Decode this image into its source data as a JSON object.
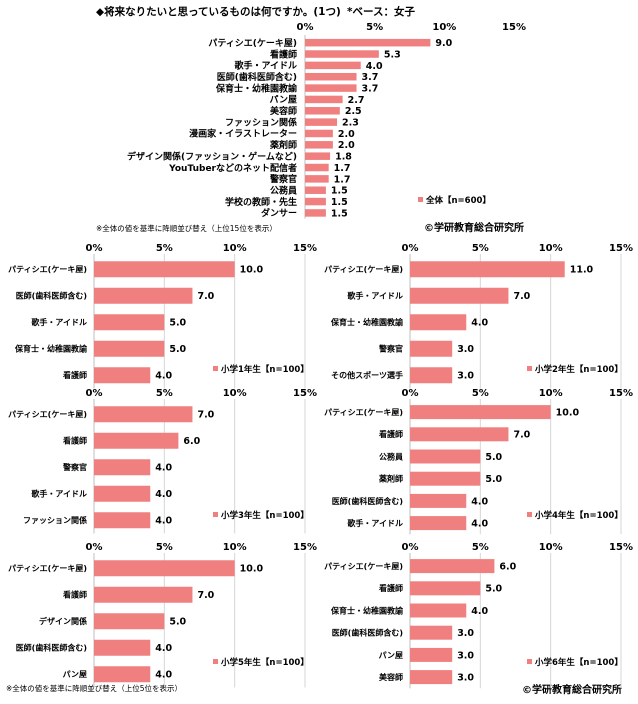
{
  "header": {
    "title": "◆将来なりたいと思っているものは何ですか。(1つ)",
    "base": "*ベース：女子"
  },
  "notes": {
    "top": "※全体の値を基準に降順並び替え（上位15位を表示）",
    "bottom": "※全体の値を基準に降順並び替え（上位5位を表示）"
  },
  "copyright": "©学研教育総合研究所",
  "bar_color": "#f08080",
  "chart_data": [
    {
      "type": "bar",
      "orientation": "horizontal",
      "legend": "全体【n=600】",
      "x_ticks": [
        "0%",
        "5%",
        "10%",
        "15%"
      ],
      "xlim": [
        0,
        15
      ],
      "grid": false,
      "categories": [
        "パティシエ(ケーキ屋)",
        "看護師",
        "歌手・アイドル",
        "医師(歯科医師含む)",
        "保育士・幼稚園教諭",
        "パン屋",
        "美容師",
        "ファッション関係",
        "漫画家・イラストレーター",
        "薬剤師",
        "デザイン関係(ファッション・ゲームなど)",
        "YouTuberなどのネット配信者",
        "警察官",
        "公務員",
        "学校の教師・先生",
        "ダンサー"
      ],
      "values": [
        9.0,
        5.3,
        4.0,
        3.7,
        3.7,
        2.7,
        2.5,
        2.3,
        2.0,
        2.0,
        1.8,
        1.7,
        1.7,
        1.5,
        1.5,
        1.5
      ],
      "value_labels": [
        "9.0",
        "5.3",
        "4.0",
        "3.7",
        "3.7",
        "2.7",
        "2.5",
        "2.3",
        "2.0",
        "2.0",
        "1.8",
        "1.7",
        "1.7",
        "1.5",
        "1.5",
        "1.5"
      ]
    },
    {
      "type": "bar",
      "orientation": "horizontal",
      "legend": "小学1年生【n=100】",
      "x_ticks": [
        "0%",
        "5%",
        "10%",
        "15%"
      ],
      "xlim": [
        0,
        15
      ],
      "grid": true,
      "categories": [
        "パティシエ(ケーキ屋)",
        "医師(歯科医師含む)",
        "歌手・アイドル",
        "保育士・幼稚園教諭",
        "看護師"
      ],
      "values": [
        10.0,
        7.0,
        5.0,
        5.0,
        4.0
      ],
      "value_labels": [
        "10.0",
        "7.0",
        "5.0",
        "5.0",
        "4.0"
      ]
    },
    {
      "type": "bar",
      "orientation": "horizontal",
      "legend": "小学2年生【n=100】",
      "x_ticks": [
        "0%",
        "5%",
        "10%",
        "15%"
      ],
      "xlim": [
        0,
        15
      ],
      "grid": true,
      "categories": [
        "パティシエ(ケーキ屋)",
        "歌手・アイドル",
        "保育士・幼稚園教諭",
        "警察官",
        "その他スポーツ選手"
      ],
      "values": [
        11.0,
        7.0,
        4.0,
        3.0,
        3.0
      ],
      "value_labels": [
        "11.0",
        "7.0",
        "4.0",
        "3.0",
        "3.0"
      ]
    },
    {
      "type": "bar",
      "orientation": "horizontal",
      "legend": "小学3年生【n=100】",
      "x_ticks": [
        "0%",
        "5%",
        "10%",
        "15%"
      ],
      "xlim": [
        0,
        15
      ],
      "grid": true,
      "categories": [
        "パティシエ(ケーキ屋)",
        "看護師",
        "警察官",
        "歌手・アイドル",
        "ファッション関係"
      ],
      "values": [
        7.0,
        6.0,
        4.0,
        4.0,
        4.0
      ],
      "value_labels": [
        "7.0",
        "6.0",
        "4.0",
        "4.0",
        "4.0"
      ]
    },
    {
      "type": "bar",
      "orientation": "horizontal",
      "legend": "小学4年生【n=100】",
      "x_ticks": [
        "0%",
        "5%",
        "10%",
        "15%"
      ],
      "xlim": [
        0,
        15
      ],
      "grid": true,
      "categories": [
        "パティシエ(ケーキ屋)",
        "看護師",
        "公務員",
        "薬剤師",
        "医師(歯科医師含む)",
        "歌手・アイドル"
      ],
      "values": [
        10.0,
        7.0,
        5.0,
        5.0,
        4.0,
        4.0
      ],
      "value_labels": [
        "10.0",
        "7.0",
        "5.0",
        "5.0",
        "4.0",
        "4.0"
      ]
    },
    {
      "type": "bar",
      "orientation": "horizontal",
      "legend": "小学5年生【n=100】",
      "x_ticks": [
        "0%",
        "5%",
        "10%",
        "15%"
      ],
      "xlim": [
        0,
        15
      ],
      "grid": true,
      "categories": [
        "パティシエ(ケーキ屋)",
        "看護師",
        "デザイン関係",
        "医師(歯科医師含む)",
        "パン屋"
      ],
      "values": [
        10.0,
        7.0,
        5.0,
        4.0,
        4.0
      ],
      "value_labels": [
        "10.0",
        "7.0",
        "5.0",
        "4.0",
        "4.0"
      ]
    },
    {
      "type": "bar",
      "orientation": "horizontal",
      "legend": "小学6年生【n=100】",
      "x_ticks": [
        "0%",
        "5%",
        "10%",
        "15%"
      ],
      "xlim": [
        0,
        15
      ],
      "grid": true,
      "categories": [
        "パティシエ(ケーキ屋)",
        "看護師",
        "保育士・幼稚園教諭",
        "医師(歯科医師含む)",
        "パン屋",
        "美容師"
      ],
      "values": [
        6.0,
        5.0,
        4.0,
        3.0,
        3.0,
        3.0
      ],
      "value_labels": [
        "6.0",
        "5.0",
        "4.0",
        "3.0",
        "3.0",
        "3.0"
      ]
    }
  ]
}
